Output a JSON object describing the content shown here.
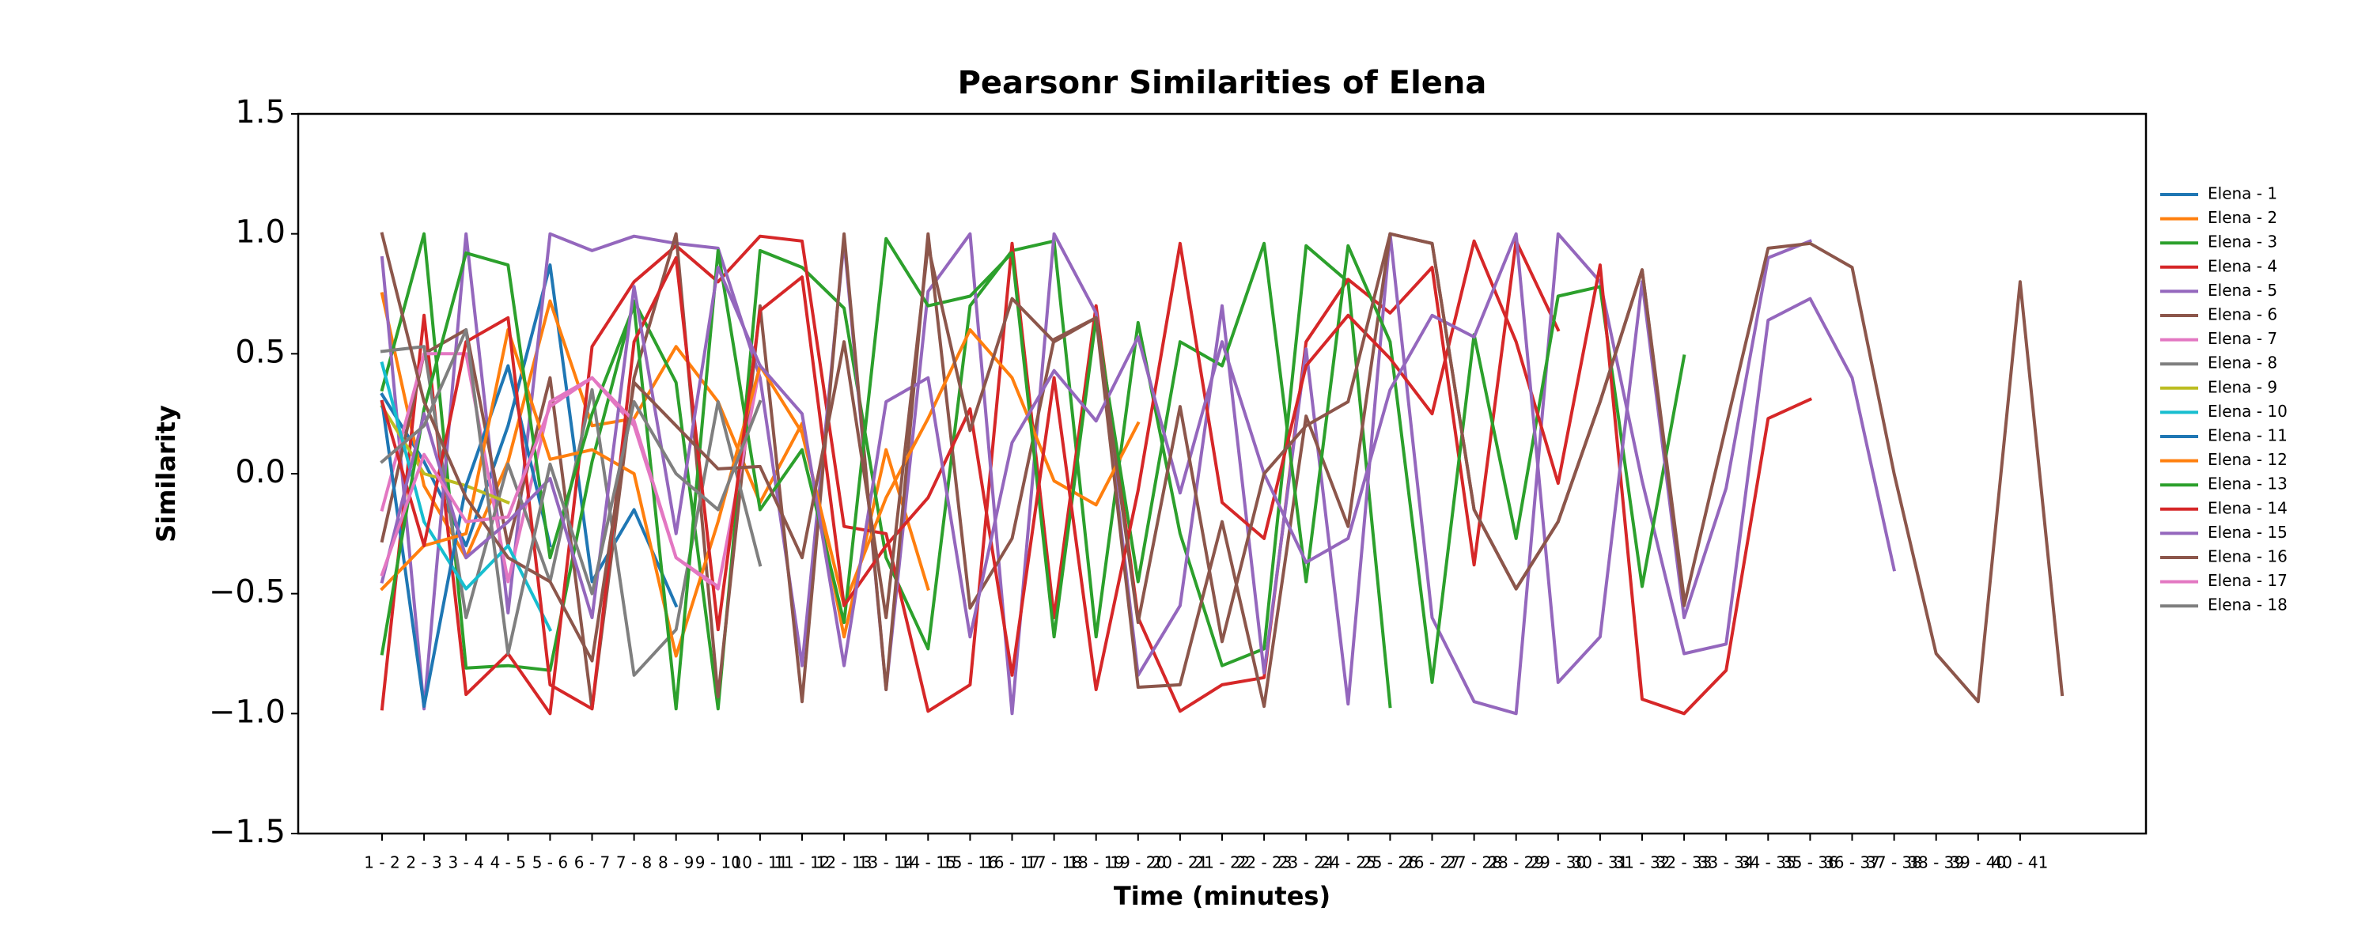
{
  "chart_data": {
    "type": "line",
    "title": "Pearsonr Similarities of Elena",
    "xlabel": "Time (minutes)",
    "ylabel": "Similarity",
    "categories": [
      "1 - 2",
      "2 - 3",
      "3 - 4",
      "4 - 5",
      "5 - 6",
      "6 - 7",
      "7 - 8",
      "8 - 9",
      "9 - 10",
      "10 - 11",
      "11 - 12",
      "12 - 13",
      "13 - 14",
      "14 - 15",
      "15 - 16",
      "16 - 17",
      "17 - 18",
      "18 - 19",
      "19 - 20",
      "20 - 21",
      "21 - 22",
      "22 - 23",
      "23 - 24",
      "24 - 25",
      "25 - 26",
      "26 - 27",
      "27 - 28",
      "28 - 29",
      "29 - 30",
      "30 - 31",
      "31 - 32",
      "32 - 33",
      "33 - 34",
      "34 - 35",
      "35 - 36",
      "36 - 37",
      "37 - 38",
      "38 - 39",
      "39 - 40",
      "40 - 41",
      null
    ],
    "ylim": [
      -1.5,
      1.5
    ],
    "yticks": [
      {
        "value": -1.5,
        "label": "−1.5"
      },
      {
        "value": -1.0,
        "label": "−1.0"
      },
      {
        "value": -0.5,
        "label": "−0.5"
      },
      {
        "value": 0,
        "label": "0.0"
      },
      0.5,
      {
        "value": 1.0,
        "label": "1.0"
      },
      1.5
    ],
    "legend": "outside right",
    "series": [
      {
        "name": "Elena - 1",
        "color": "#1f77b4",
        "values": [
          0.33,
          0.05,
          -0.3,
          0.2,
          0.87,
          -0.45,
          -0.15,
          -0.55,
          null,
          null,
          null,
          null,
          null,
          null,
          null,
          null,
          null,
          null,
          null,
          null,
          null,
          null,
          null,
          null,
          null,
          null,
          null,
          null,
          null,
          null,
          null,
          null,
          null,
          null,
          null,
          null,
          null,
          null,
          null,
          null,
          null
        ]
      },
      {
        "name": "Elena - 2",
        "color": "#ff7f0e",
        "values": [
          0.75,
          -0.05,
          -0.35,
          0.05,
          0.72,
          0.2,
          0.23,
          0.53,
          0.3,
          -0.12,
          0.21,
          -0.68,
          0.1,
          -0.48,
          null,
          null,
          null,
          null,
          null,
          null,
          null,
          null,
          null,
          null,
          null,
          null,
          null,
          null,
          null,
          null,
          null,
          null,
          null,
          null,
          null,
          null,
          null,
          null,
          null,
          null,
          null
        ]
      },
      {
        "name": "Elena - 3",
        "color": "#2ca02c",
        "values": [
          0.35,
          1.0,
          -0.81,
          -0.8,
          -0.82,
          0.05,
          0.72,
          0.38,
          -0.98,
          0.93,
          0.86,
          0.69,
          -0.35,
          -0.73,
          0.7,
          0.93,
          0.97,
          -0.68,
          0.63,
          -0.25,
          -0.8,
          -0.73,
          0.95,
          0.8,
          -0.97,
          null,
          null,
          null,
          null,
          null,
          null,
          null,
          null,
          null,
          null,
          null,
          null,
          null,
          null,
          null,
          null
        ]
      },
      {
        "name": "Elena - 4",
        "color": "#d62728",
        "values": [
          -0.98,
          0.66,
          -0.92,
          -0.75,
          -1.0,
          0.53,
          0.8,
          0.95,
          0.8,
          0.99,
          0.97,
          -0.22,
          -0.25,
          -0.99,
          -0.88,
          0.96,
          -0.6,
          0.7,
          -0.6,
          -0.99,
          -0.88,
          -0.85,
          0.55,
          0.81,
          0.67,
          0.86,
          -0.38,
          0.97,
          0.6,
          null,
          null,
          null,
          null,
          null,
          null,
          null,
          null,
          null,
          null,
          null,
          null
        ]
      },
      {
        "name": "Elena - 5",
        "color": "#9467bd",
        "values": [
          0.9,
          -0.98,
          1.0,
          -0.58,
          1.0,
          0.93,
          0.99,
          0.96,
          0.94,
          0.4,
          -0.8,
          0.97,
          -0.9,
          0.76,
          1.0,
          -1.0,
          1.0,
          0.67,
          -0.84,
          -0.55,
          0.7,
          -0.83,
          0.52,
          -0.96,
          1.0,
          -0.6,
          -0.95,
          -1.0,
          1.0,
          0.8,
          -0.03,
          -0.75,
          -0.71,
          0.64,
          0.73,
          0.4,
          -0.4,
          null,
          null,
          null,
          null
        ]
      },
      {
        "name": "Elena - 6",
        "color": "#8c564b",
        "values": [
          -0.28,
          0.5,
          0.6,
          -0.3,
          0.4,
          -0.98,
          0.4,
          1.0,
          -0.93,
          0.7,
          -0.95,
          1.0,
          -0.9,
          1.0,
          -0.56,
          -0.27,
          0.56,
          0.65,
          -0.89,
          -0.88,
          -0.2,
          -0.97,
          0.24,
          -0.22,
          1.0,
          0.96,
          -0.15,
          -0.48,
          -0.2,
          0.3,
          0.85,
          -0.52,
          null,
          null,
          null,
          null,
          null,
          null,
          null,
          null,
          null
        ]
      },
      {
        "name": "Elena - 7",
        "color": "#e377c2",
        "values": [
          -0.15,
          0.5,
          0.5,
          -0.45,
          0.3,
          0.4,
          0.2,
          -0.35,
          -0.48,
          0.45,
          null,
          null,
          null,
          null,
          null,
          null,
          null,
          null,
          null,
          null,
          null,
          null,
          null,
          null,
          null,
          null,
          null,
          null,
          null,
          null,
          null,
          null,
          null,
          null,
          null,
          null,
          null,
          null,
          null,
          null,
          null
        ]
      },
      {
        "name": "Elena - 8",
        "color": "#7f7f7f",
        "values": [
          0.51,
          0.53,
          -0.6,
          0.04,
          -0.45,
          0.35,
          -0.84,
          -0.65,
          0.3,
          -0.38,
          null,
          null,
          null,
          null,
          null,
          null,
          null,
          null,
          null,
          null,
          null,
          null,
          null,
          null,
          null,
          null,
          null,
          null,
          null,
          null,
          null,
          null,
          null,
          null,
          null,
          null,
          null,
          null,
          null,
          null,
          null
        ]
      },
      {
        "name": "Elena - 9",
        "color": "#bcbd22",
        "values": [
          0.28,
          0.0,
          -0.05,
          -0.12,
          null,
          null,
          null,
          null,
          null,
          null,
          null,
          null,
          null,
          null,
          null,
          null,
          null,
          null,
          null,
          null,
          null,
          null,
          null,
          null,
          null,
          null,
          null,
          null,
          null,
          null,
          null,
          null,
          null,
          null,
          null,
          null,
          null,
          null,
          null,
          null,
          null
        ]
      },
      {
        "name": "Elena - 10",
        "color": "#17becf",
        "values": [
          0.46,
          -0.2,
          -0.48,
          -0.3,
          -0.65,
          null,
          null,
          null,
          null,
          null,
          null,
          null,
          null,
          null,
          null,
          null,
          null,
          null,
          null,
          null,
          null,
          null,
          null,
          null,
          null,
          null,
          null,
          null,
          null,
          null,
          null,
          null,
          null,
          null,
          null,
          null,
          null,
          null,
          null,
          null,
          null
        ]
      },
      {
        "name": "Elena - 11",
        "color": "#1f77b4",
        "values": [
          0.3,
          -0.97,
          -0.05,
          0.45,
          -0.3,
          null,
          null,
          null,
          null,
          null,
          null,
          null,
          null,
          null,
          null,
          null,
          null,
          null,
          null,
          null,
          null,
          null,
          null,
          null,
          null,
          null,
          null,
          null,
          null,
          null,
          null,
          null,
          null,
          null,
          null,
          null,
          null,
          null,
          null,
          null,
          null
        ]
      },
      {
        "name": "Elena - 12",
        "color": "#ff7f0e",
        "values": [
          -0.48,
          -0.3,
          -0.25,
          0.6,
          0.06,
          0.1,
          0.0,
          -0.76,
          -0.2,
          0.45,
          0.17,
          -0.55,
          -0.1,
          0.23,
          0.6,
          0.4,
          -0.03,
          -0.13,
          0.21,
          null,
          null,
          null,
          null,
          null,
          null,
          null,
          null,
          null,
          null,
          null,
          null,
          null,
          null,
          null,
          null,
          null,
          null,
          null,
          null,
          null,
          null
        ]
      },
      {
        "name": "Elena - 13",
        "color": "#2ca02c",
        "values": [
          -0.75,
          0.27,
          0.92,
          0.87,
          -0.35,
          0.25,
          0.7,
          -0.98,
          0.93,
          -0.15,
          0.1,
          -0.62,
          0.98,
          0.7,
          0.74,
          0.92,
          -0.68,
          0.65,
          -0.45,
          0.55,
          0.45,
          0.96,
          -0.45,
          0.95,
          0.55,
          -0.87,
          0.58,
          -0.27,
          0.74,
          0.78,
          -0.47,
          0.49,
          null,
          null,
          null,
          null,
          null,
          null,
          null,
          null,
          null
        ]
      },
      {
        "name": "Elena - 14",
        "color": "#d62728",
        "values": [
          0.3,
          -0.3,
          0.55,
          0.65,
          -0.88,
          -0.98,
          0.55,
          0.9,
          -0.65,
          0.68,
          0.82,
          -0.55,
          -0.3,
          -0.1,
          0.27,
          -0.84,
          0.4,
          -0.9,
          -0.07,
          0.96,
          -0.12,
          -0.27,
          0.45,
          0.66,
          0.48,
          0.25,
          0.97,
          0.55,
          -0.04,
          0.87,
          -0.94,
          -1.0,
          -0.82,
          0.23,
          0.31,
          null,
          null,
          null,
          null,
          null,
          null
        ]
      },
      {
        "name": "Elena - 15",
        "color": "#9467bd",
        "values": [
          -0.45,
          0.25,
          -0.35,
          -0.2,
          -0.02,
          -0.6,
          0.78,
          -0.25,
          0.86,
          0.45,
          0.25,
          -0.8,
          0.3,
          0.4,
          -0.68,
          0.13,
          0.43,
          0.22,
          0.57,
          -0.08,
          0.55,
          0.0,
          -0.37,
          -0.27,
          0.35,
          0.66,
          0.57,
          1.0,
          -0.87,
          -0.68,
          0.8,
          -0.6,
          -0.06,
          0.9,
          0.97,
          null,
          null,
          null,
          null,
          null,
          null
        ]
      },
      {
        "name": "Elena - 16",
        "color": "#8c564b",
        "values": [
          1.0,
          0.3,
          -0.1,
          -0.35,
          -0.45,
          -0.78,
          0.38,
          0.2,
          0.02,
          0.03,
          -0.35,
          0.55,
          -0.6,
          0.95,
          0.18,
          0.73,
          0.55,
          0.65,
          -0.62,
          0.28,
          -0.7,
          0.0,
          0.2,
          0.3,
          1.0,
          0.96,
          -0.15,
          -0.48,
          -0.2,
          0.3,
          0.85,
          -0.55,
          0.2,
          0.94,
          0.96,
          0.86,
          0.0,
          -0.75,
          -0.95,
          0.8,
          -0.92
        ]
      },
      {
        "name": "Elena - 17",
        "color": "#e377c2",
        "values": [
          -0.42,
          0.08,
          -0.2,
          -0.18,
          0.28,
          0.4,
          0.22,
          -0.35,
          -0.47,
          null,
          null,
          null,
          null,
          null,
          null,
          null,
          null,
          null,
          null,
          null,
          null,
          null,
          null,
          null,
          null,
          null,
          null,
          null,
          null,
          null,
          null,
          null,
          null,
          null,
          null,
          null,
          null,
          null,
          null,
          null,
          null
        ]
      },
      {
        "name": "Elena - 18",
        "color": "#7f7f7f",
        "values": [
          0.05,
          0.2,
          0.6,
          -0.75,
          0.04,
          -0.5,
          0.3,
          0.0,
          -0.15,
          0.3,
          null,
          null,
          null,
          null,
          null,
          null,
          null,
          null,
          null,
          null,
          null,
          null,
          null,
          null,
          null,
          null,
          null,
          null,
          null,
          null,
          null,
          null,
          null,
          null,
          null,
          null,
          null,
          null,
          null,
          null,
          null
        ]
      }
    ]
  }
}
